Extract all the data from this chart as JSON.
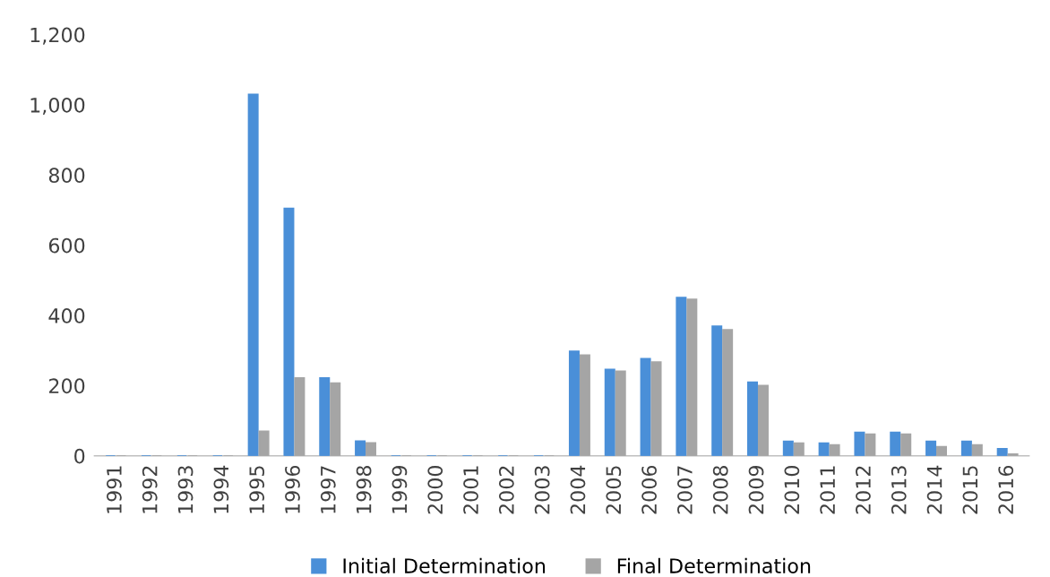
{
  "chart_data": {
    "type": "bar",
    "categories": [
      "1991",
      "1992",
      "1993",
      "1994",
      "1995",
      "1996",
      "1997",
      "1998",
      "1999",
      "2000",
      "2001",
      "2002",
      "2003",
      "2004",
      "2005",
      "2006",
      "2007",
      "2008",
      "2009",
      "2010",
      "2011",
      "2012",
      "2013",
      "2014",
      "2015",
      "2016"
    ],
    "series": [
      {
        "name": "Initial Determination",
        "color": "#4a8fd8",
        "values": [
          0,
          0,
          0,
          0,
          1030,
          705,
          222,
          42,
          0,
          0,
          0,
          0,
          0,
          298,
          246,
          277,
          451,
          369,
          210,
          41,
          36,
          67,
          67,
          41,
          41,
          20
        ]
      },
      {
        "name": "Final Determination",
        "color": "#a5a5a5",
        "values": [
          0,
          0,
          0,
          0,
          70,
          222,
          207,
          37,
          0,
          0,
          0,
          0,
          0,
          287,
          241,
          267,
          446,
          359,
          200,
          36,
          31,
          62,
          62,
          26,
          31,
          5
        ]
      }
    ],
    "ylim": [
      0,
      1200
    ],
    "yticks": [
      {
        "value": 0,
        "label": "0"
      },
      {
        "value": 200,
        "label": "200"
      },
      {
        "value": 400,
        "label": "400"
      },
      {
        "value": 600,
        "label": "600"
      },
      {
        "value": 800,
        "label": "800"
      },
      {
        "value": 1000,
        "label": "1,000"
      },
      {
        "value": 1200,
        "label": "1,200"
      }
    ],
    "grid": false,
    "legend": "bottom"
  }
}
